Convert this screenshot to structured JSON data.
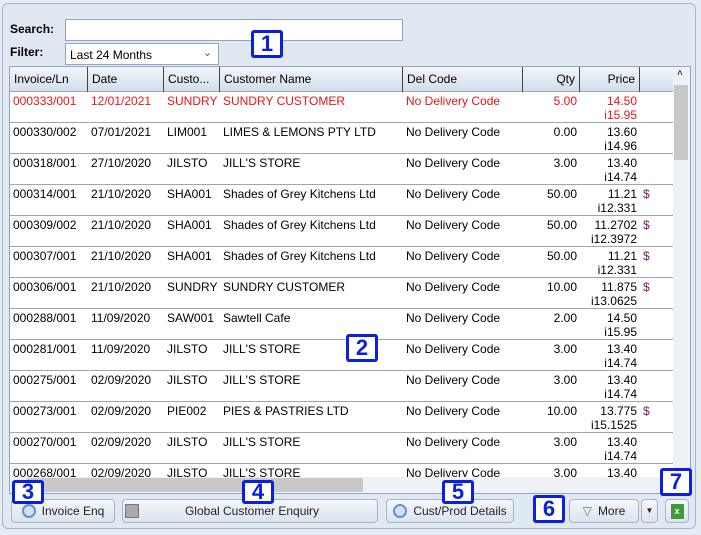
{
  "search": {
    "label": "Search:",
    "value": ""
  },
  "filter": {
    "label": "Filter:",
    "value": "Last 24 Months"
  },
  "columns": [
    "Invoice/Ln",
    "Date",
    "Custo...",
    "Customer Name",
    "Del Code",
    "Qty",
    "Price",
    ""
  ],
  "rows": [
    {
      "inv": "000333/001",
      "date": "12/01/2021",
      "cust": "SUNDRY",
      "name": "SUNDRY CUSTOMER",
      "del": "No Delivery Code",
      "qty": "5.00",
      "price": "14.50",
      "iprice": "i15.95",
      "extra": "",
      "highlight": true
    },
    {
      "inv": "000330/002",
      "date": "07/01/2021",
      "cust": "LIM001",
      "name": "LIMES & LEMONS PTY LTD",
      "del": "No Delivery Code",
      "qty": "0.00",
      "price": "13.60",
      "iprice": "i14.96",
      "extra": ""
    },
    {
      "inv": "000318/001",
      "date": "27/10/2020",
      "cust": "JILSTO",
      "name": "JILL'S STORE",
      "del": "No Delivery Code",
      "qty": "3.00",
      "price": "13.40",
      "iprice": "i14.74",
      "extra": ""
    },
    {
      "inv": "000314/001",
      "date": "21/10/2020",
      "cust": "SHA001",
      "name": "Shades of Grey Kitchens Ltd",
      "del": "No Delivery Code",
      "qty": "50.00",
      "price": "11.21",
      "iprice": "i12.331",
      "extra": "$"
    },
    {
      "inv": "000309/002",
      "date": "21/10/2020",
      "cust": "SHA001",
      "name": "Shades of Grey Kitchens Ltd",
      "del": "No Delivery Code",
      "qty": "50.00",
      "price": "11.2702",
      "iprice": "i12.3972",
      "extra": "$"
    },
    {
      "inv": "000307/001",
      "date": "21/10/2020",
      "cust": "SHA001",
      "name": "Shades of Grey Kitchens Ltd",
      "del": "No Delivery Code",
      "qty": "50.00",
      "price": "11.21",
      "iprice": "i12.331",
      "extra": "$"
    },
    {
      "inv": "000306/001",
      "date": "21/10/2020",
      "cust": "SUNDRY",
      "name": "SUNDRY CUSTOMER",
      "del": "No Delivery Code",
      "qty": "10.00",
      "price": "11.875",
      "iprice": "i13.0625",
      "extra": "$"
    },
    {
      "inv": "000288/001",
      "date": "11/09/2020",
      "cust": "SAW001",
      "name": "Sawtell Cafe",
      "del": "No Delivery Code",
      "qty": "2.00",
      "price": "14.50",
      "iprice": "i15.95",
      "extra": ""
    },
    {
      "inv": "000281/001",
      "date": "11/09/2020",
      "cust": "JILSTO",
      "name": "JILL'S STORE",
      "del": "No Delivery Code",
      "qty": "3.00",
      "price": "13.40",
      "iprice": "i14.74",
      "extra": ""
    },
    {
      "inv": "000275/001",
      "date": "02/09/2020",
      "cust": "JILSTO",
      "name": "JILL'S STORE",
      "del": "No Delivery Code",
      "qty": "3.00",
      "price": "13.40",
      "iprice": "i14.74",
      "extra": ""
    },
    {
      "inv": "000273/001",
      "date": "02/09/2020",
      "cust": "PIE002",
      "name": "PIES & PASTRIES LTD",
      "del": "No Delivery Code",
      "qty": "10.00",
      "price": "13.775",
      "iprice": "i15.1525",
      "extra": "$"
    },
    {
      "inv": "000270/001",
      "date": "02/09/2020",
      "cust": "JILSTO",
      "name": "JILL'S STORE",
      "del": "No Delivery Code",
      "qty": "3.00",
      "price": "13.40",
      "iprice": "i14.74",
      "extra": ""
    },
    {
      "inv": "000268/001",
      "date": "02/09/2020",
      "cust": "JILSTO",
      "name": "JILL'S STORE",
      "del": "No Delivery Code",
      "qty": "3.00",
      "price": "13.40",
      "iprice": "",
      "extra": ""
    }
  ],
  "buttons": {
    "invoice_enq": "Invoice Enq",
    "global_enq": "Global Customer Enquiry",
    "cust_prod": "Cust/Prod Details",
    "more": "More"
  },
  "badges": [
    "1",
    "2",
    "3",
    "4",
    "5",
    "6",
    "7"
  ],
  "colors": {
    "highlight_row": "#e8141c",
    "badge": "#0a1fe0"
  }
}
